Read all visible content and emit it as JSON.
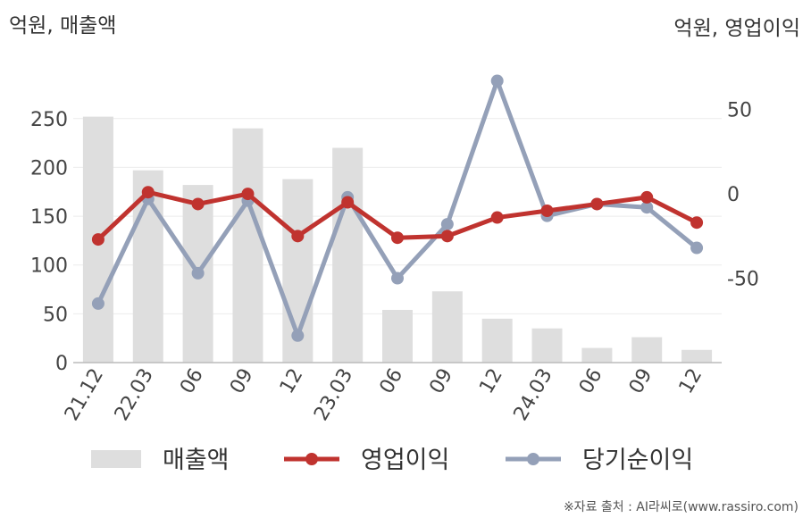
{
  "chart_data": {
    "type": "bar",
    "left_axis_title": "억원, 매출액",
    "right_axis_title": "억원, 영업이익",
    "categories": [
      "21.12",
      "22.03",
      "06",
      "09",
      "12",
      "23.03",
      "06",
      "09",
      "12",
      "24.03",
      "06",
      "09",
      "12"
    ],
    "y_left": {
      "ticks": [
        0,
        50,
        100,
        150,
        200,
        250
      ],
      "range": [
        0,
        280
      ]
    },
    "y_right": {
      "ticks": [
        -50,
        0,
        50
      ],
      "range": [
        -100,
        62
      ]
    },
    "series": [
      {
        "name": "매출액",
        "type": "bar",
        "axis": "left",
        "color": "#dedede",
        "values": [
          252,
          197,
          182,
          240,
          188,
          220,
          54,
          73,
          45,
          35,
          15,
          26,
          13
        ]
      },
      {
        "name": "영업이익",
        "type": "line",
        "axis": "right",
        "color": "#c0332f",
        "values": [
          -27,
          1,
          -6,
          0,
          -25,
          -5,
          -26,
          -25,
          -14,
          -10,
          -6,
          -2,
          -17
        ]
      },
      {
        "name": "당기순이익",
        "type": "line",
        "axis": "right",
        "color": "#94a0b8",
        "values": [
          -65,
          -3,
          -47,
          -4,
          -84,
          -2,
          -50,
          -18,
          67,
          -13,
          -6,
          -8,
          -32
        ]
      }
    ],
    "grid": true,
    "legend_position": "bottom"
  },
  "source": "※자료 출처 : AI라씨로(www.rassiro.com)"
}
